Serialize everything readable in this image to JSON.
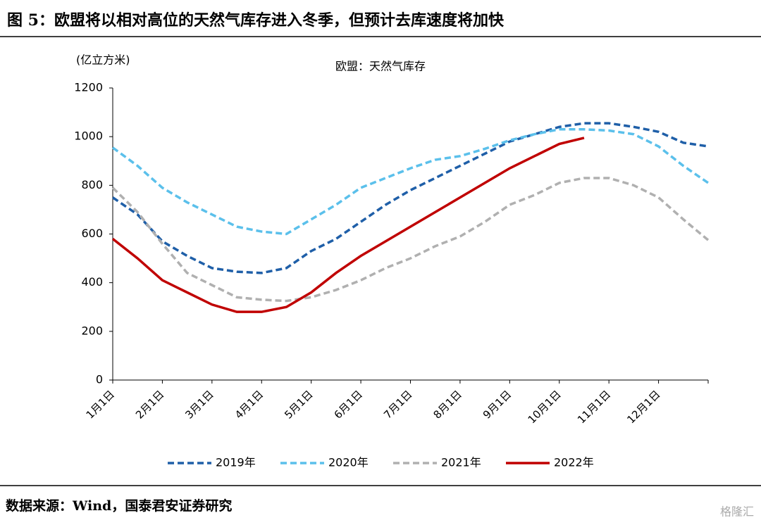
{
  "header": {
    "title": "图 5：欧盟将以相对高位的天然气库存进入冬季，但预计去库速度将加快"
  },
  "chart_data": {
    "type": "line",
    "title": "欧盟：天然气库存",
    "y_label": "(亿立方米)",
    "categories": [
      "1月1日",
      null,
      "2月1日",
      null,
      "3月1日",
      null,
      "4月1日",
      null,
      "5月1日",
      null,
      "6月1日",
      null,
      "7月1日",
      null,
      "8月1日",
      null,
      "9月1日",
      null,
      "10月1日",
      null,
      "11月1日",
      null,
      "12月1日",
      null,
      null
    ],
    "series": [
      {
        "name": "2019年",
        "color": "#1f5fa8",
        "dashed": true,
        "values": [
          750,
          680,
          570,
          510,
          460,
          445,
          440,
          460,
          530,
          580,
          650,
          720,
          780,
          830,
          880,
          930,
          980,
          1010,
          1040,
          1055,
          1055,
          1040,
          1020,
          975,
          960
        ]
      },
      {
        "name": "2020年",
        "color": "#5bc0eb",
        "dashed": true,
        "values": [
          955,
          880,
          790,
          730,
          680,
          630,
          610,
          600,
          660,
          720,
          790,
          830,
          870,
          905,
          920,
          950,
          985,
          1010,
          1030,
          1030,
          1025,
          1010,
          960,
          880,
          810
        ]
      },
      {
        "name": "2021年",
        "color": "#b0b0b0",
        "dashed": true,
        "values": [
          790,
          690,
          560,
          440,
          390,
          340,
          330,
          325,
          340,
          370,
          410,
          460,
          500,
          550,
          590,
          650,
          720,
          760,
          810,
          830,
          830,
          800,
          750,
          660,
          575
        ]
      },
      {
        "name": "2022年",
        "color": "#c00000",
        "dashed": false,
        "values": [
          580,
          500,
          410,
          360,
          310,
          280,
          280,
          300,
          360,
          440,
          510,
          570,
          630,
          690,
          750,
          810,
          870,
          920,
          970,
          995,
          null,
          null,
          null,
          null,
          null
        ]
      }
    ],
    "ylim": [
      0,
      1200
    ],
    "yticks": [
      0,
      200,
      400,
      600,
      800,
      1000,
      1200
    ],
    "grid": false,
    "legend": "bottom"
  },
  "footer": {
    "source": "数据来源：Wind，国泰君安证券研究",
    "watermark": "格隆汇"
  }
}
